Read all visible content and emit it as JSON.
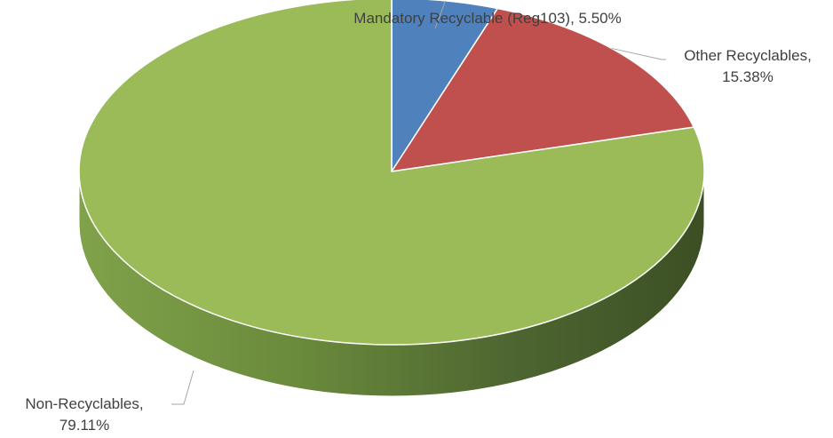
{
  "chart_data": {
    "type": "pie",
    "style": "3d",
    "slices": [
      {
        "name": "Mandatory Recyclable (Reg103)",
        "value": 5.5,
        "label_lines": [
          "Mandatory Recyclable (Reg103), 5.50%"
        ],
        "color": "#4f81bd"
      },
      {
        "name": "Other Recyclables",
        "value": 15.38,
        "label_lines": [
          "Other Recyclables,",
          "15.38%"
        ],
        "color": "#c0504d"
      },
      {
        "name": "Non-Recyclables",
        "value": 79.11,
        "label_lines": [
          "Non-Recyclables,",
          "79.11%"
        ],
        "color": "#9bbb59"
      }
    ]
  }
}
